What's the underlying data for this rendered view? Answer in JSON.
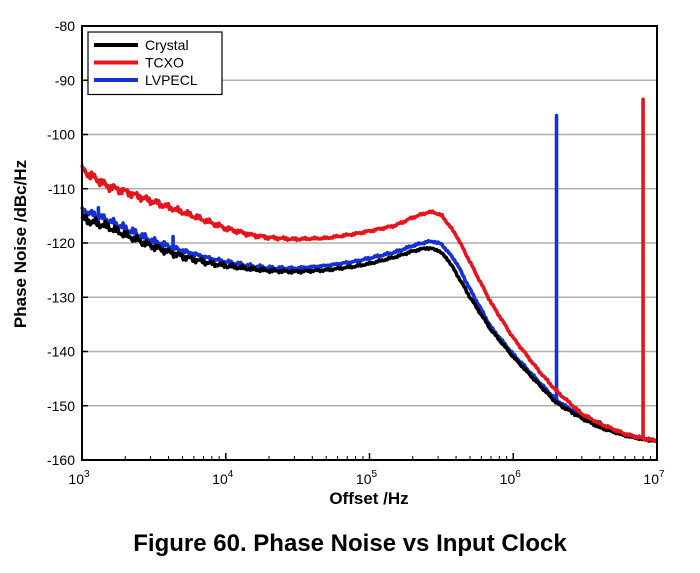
{
  "figure": {
    "caption": "Figure 60.  Phase Noise vs Input Clock"
  },
  "chart_data": {
    "type": "line",
    "title": "",
    "xlabel": "Offset /Hz",
    "ylabel": "Phase Noise /dBc/Hz",
    "x_scale": "log",
    "xlim": [
      1000,
      10000000
    ],
    "ylim": [
      -160,
      -80
    ],
    "x_ticks": [
      {
        "value": 1000,
        "base": "10",
        "exp": "3"
      },
      {
        "value": 10000,
        "base": "10",
        "exp": "4"
      },
      {
        "value": 100000,
        "base": "10",
        "exp": "5"
      },
      {
        "value": 1000000,
        "base": "10",
        "exp": "6"
      },
      {
        "value": 10000000,
        "base": "10",
        "exp": "7"
      }
    ],
    "y_ticks": [
      -80,
      -90,
      -100,
      -110,
      -120,
      -130,
      -140,
      -150,
      -160
    ],
    "grid": "horizontal",
    "legend_position": "top-left",
    "series": [
      {
        "name": "Crystal",
        "color": "#000000",
        "points": [
          [
            1000,
            -115.5
          ],
          [
            1500,
            -117
          ],
          [
            2000,
            -118.5
          ],
          [
            3000,
            -120.5
          ],
          [
            5000,
            -122.5
          ],
          [
            8000,
            -123.8
          ],
          [
            10000,
            -124.2
          ],
          [
            15000,
            -124.8
          ],
          [
            20000,
            -125.1
          ],
          [
            30000,
            -125.3
          ],
          [
            50000,
            -125.0
          ],
          [
            80000,
            -124.3
          ],
          [
            100000,
            -123.8
          ],
          [
            150000,
            -122.6
          ],
          [
            200000,
            -121.5
          ],
          [
            250000,
            -120.9
          ],
          [
            300000,
            -121.3
          ],
          [
            350000,
            -123.0
          ],
          [
            400000,
            -125.5
          ],
          [
            500000,
            -130.0
          ],
          [
            700000,
            -136.0
          ],
          [
            1000000,
            -141.0
          ],
          [
            1500000,
            -146.0
          ],
          [
            2000000,
            -149.5
          ],
          [
            3000000,
            -152.3
          ],
          [
            4000000,
            -154.0
          ],
          [
            6000000,
            -155.5
          ],
          [
            8000000,
            -156.2
          ],
          [
            10000000,
            -156.5
          ]
        ],
        "spikes": [
          [
            4000000,
            -153.0
          ]
        ]
      },
      {
        "name": "TCXO",
        "color": "#e8141b",
        "points": [
          [
            1000,
            -106.5
          ],
          [
            1500,
            -109.5
          ],
          [
            2000,
            -110.5
          ],
          [
            3000,
            -112.2
          ],
          [
            5000,
            -114.3
          ],
          [
            8000,
            -116.3
          ],
          [
            10000,
            -117.3
          ],
          [
            15000,
            -118.5
          ],
          [
            20000,
            -119.0
          ],
          [
            30000,
            -119.3
          ],
          [
            50000,
            -119.1
          ],
          [
            80000,
            -118.3
          ],
          [
            100000,
            -117.8
          ],
          [
            150000,
            -116.8
          ],
          [
            200000,
            -115.3
          ],
          [
            250000,
            -114.4
          ],
          [
            280000,
            -114.3
          ],
          [
            320000,
            -115.0
          ],
          [
            400000,
            -118.5
          ],
          [
            500000,
            -123.5
          ],
          [
            700000,
            -131.0
          ],
          [
            1000000,
            -137.5
          ],
          [
            1500000,
            -143.5
          ],
          [
            2000000,
            -147.3
          ],
          [
            3000000,
            -151.5
          ],
          [
            4000000,
            -153.3
          ],
          [
            6000000,
            -155.2
          ],
          [
            8000000,
            -156.0
          ],
          [
            10000000,
            -156.5
          ]
        ],
        "spikes": [
          [
            8000000,
            -93.5
          ]
        ]
      },
      {
        "name": "LVPECL",
        "color": "#1530d6",
        "points": [
          [
            1000,
            -114.0
          ],
          [
            1500,
            -115.8
          ],
          [
            2000,
            -117.3
          ],
          [
            3000,
            -119.5
          ],
          [
            5000,
            -121.5
          ],
          [
            8000,
            -123.0
          ],
          [
            10000,
            -123.5
          ],
          [
            15000,
            -124.3
          ],
          [
            20000,
            -124.6
          ],
          [
            30000,
            -124.7
          ],
          [
            50000,
            -124.2
          ],
          [
            80000,
            -123.4
          ],
          [
            100000,
            -122.8
          ],
          [
            150000,
            -121.7
          ],
          [
            200000,
            -120.5
          ],
          [
            250000,
            -119.8
          ],
          [
            280000,
            -119.7
          ],
          [
            320000,
            -120.3
          ],
          [
            400000,
            -123.5
          ],
          [
            500000,
            -128.5
          ],
          [
            700000,
            -135.5
          ],
          [
            1000000,
            -140.5
          ],
          [
            1500000,
            -145.5
          ],
          [
            2000000,
            -149.0
          ],
          [
            3000000,
            -152.0
          ],
          [
            4000000,
            -153.7
          ],
          [
            6000000,
            -155.3
          ],
          [
            8000000,
            -156.0
          ],
          [
            10000000,
            -156.5
          ]
        ],
        "spikes": [
          [
            2000000,
            -96.5
          ],
          [
            4300,
            -118.8
          ],
          [
            1300,
            -113.5
          ]
        ]
      }
    ]
  }
}
